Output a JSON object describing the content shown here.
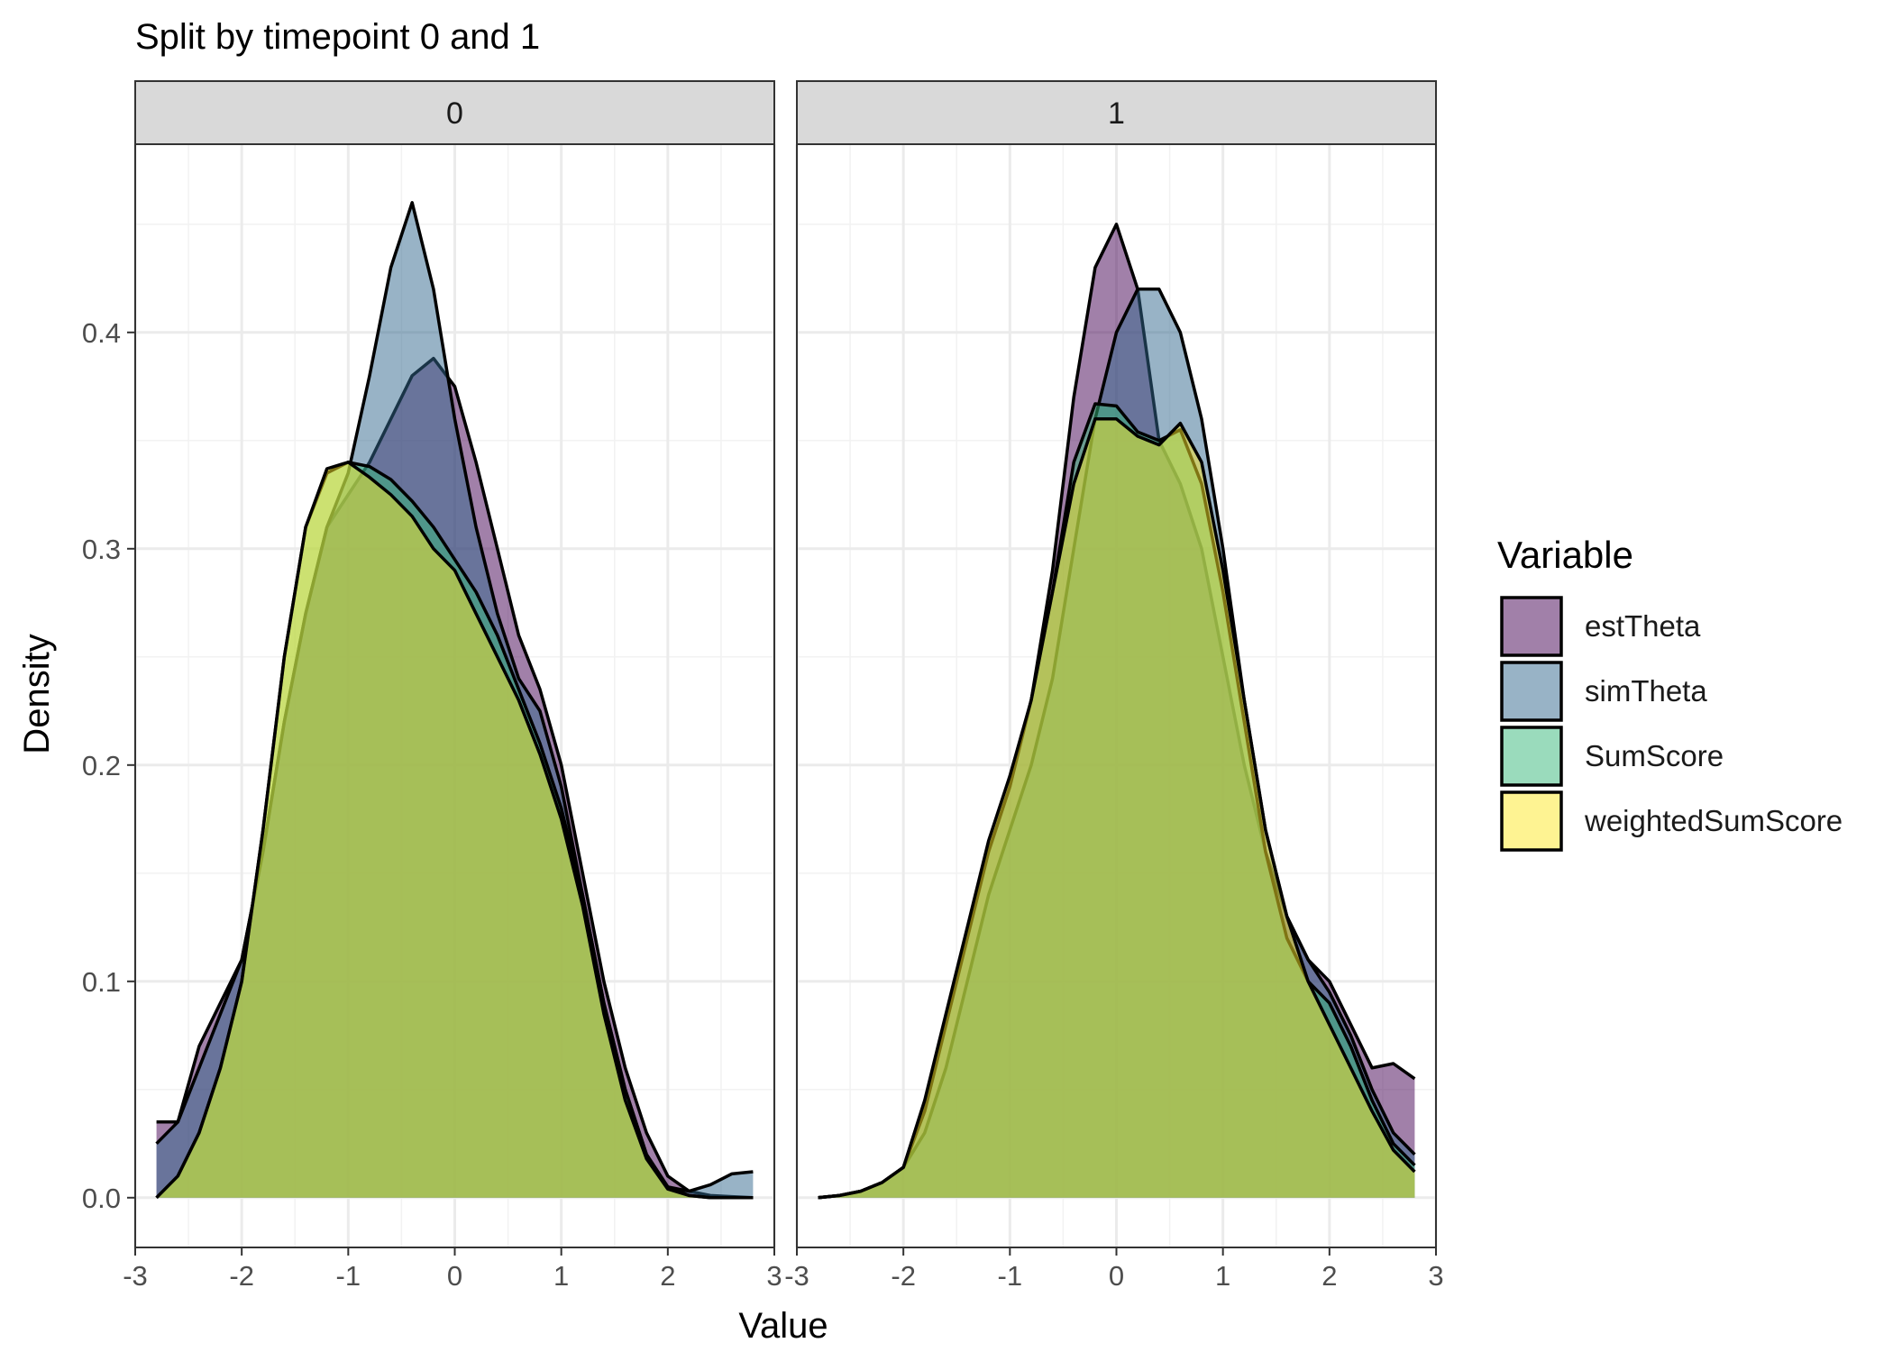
{
  "chart_data": {
    "type": "area",
    "title": "Split by timepoint 0 and 1",
    "xlabel": "Value",
    "ylabel": "Density",
    "xlim": [
      -3.0,
      3.0
    ],
    "ylim": [
      -0.023,
      0.487
    ],
    "x_ticks": [
      -3,
      -2,
      -1,
      0,
      1,
      2,
      3
    ],
    "y_ticks": [
      0.0,
      0.1,
      0.2,
      0.3,
      0.4
    ],
    "x_tick_labels": [
      "-3",
      "-2",
      "-1",
      "0",
      "1",
      "2",
      "3"
    ],
    "y_tick_labels": [
      "0.0",
      "0.1",
      "0.2",
      "0.3",
      "0.4"
    ],
    "grid": true,
    "legend": {
      "title": "Variable",
      "position": "right",
      "entries": [
        "estTheta",
        "simTheta",
        "SumScore",
        "weightedSumScore"
      ]
    },
    "colors": {
      "estTheta": "#440154",
      "simTheta": "#31688E",
      "SumScore": "#35B779",
      "weightedSumScore": "#FDE725"
    },
    "fill_opacity": 0.5,
    "panels": [
      {
        "label": "0",
        "series": [
          {
            "name": "estTheta",
            "x": [
              -2.8,
              -2.6,
              -2.4,
              -2.2,
              -2.0,
              -1.8,
              -1.6,
              -1.4,
              -1.2,
              -1.0,
              -0.8,
              -0.6,
              -0.4,
              -0.2,
              0.0,
              0.2,
              0.4,
              0.6,
              0.8,
              1.0,
              1.2,
              1.4,
              1.6,
              1.8,
              2.0,
              2.2,
              2.4,
              2.6,
              2.8
            ],
            "y": [
              0.035,
              0.035,
              0.07,
              0.09,
              0.11,
              0.16,
              0.22,
              0.27,
              0.31,
              0.325,
              0.34,
              0.36,
              0.38,
              0.388,
              0.375,
              0.34,
              0.3,
              0.26,
              0.235,
              0.2,
              0.15,
              0.1,
              0.06,
              0.03,
              0.01,
              0.003,
              0.001,
              0.0005,
              0.0
            ]
          },
          {
            "name": "simTheta",
            "x": [
              -2.8,
              -2.6,
              -2.4,
              -2.2,
              -2.0,
              -1.8,
              -1.6,
              -1.4,
              -1.2,
              -1.0,
              -0.8,
              -0.6,
              -0.4,
              -0.2,
              0.0,
              0.2,
              0.4,
              0.6,
              0.8,
              1.0,
              1.2,
              1.4,
              1.6,
              1.8,
              2.0,
              2.2,
              2.4,
              2.6,
              2.8
            ],
            "y": [
              0.025,
              0.035,
              0.06,
              0.085,
              0.11,
              0.16,
              0.22,
              0.27,
              0.31,
              0.335,
              0.38,
              0.43,
              0.46,
              0.42,
              0.36,
              0.31,
              0.27,
              0.24,
              0.225,
              0.19,
              0.14,
              0.09,
              0.05,
              0.02,
              0.005,
              0.003,
              0.006,
              0.011,
              0.012
            ]
          },
          {
            "name": "SumScore",
            "x": [
              -2.8,
              -2.6,
              -2.4,
              -2.2,
              -2.0,
              -1.8,
              -1.6,
              -1.4,
              -1.2,
              -1.0,
              -0.8,
              -0.6,
              -0.4,
              -0.2,
              0.0,
              0.2,
              0.4,
              0.6,
              0.8,
              1.0,
              1.2,
              1.4,
              1.6,
              1.8,
              2.0,
              2.2,
              2.4,
              2.6,
              2.8
            ],
            "y": [
              0.0,
              0.01,
              0.03,
              0.06,
              0.1,
              0.17,
              0.25,
              0.31,
              0.335,
              0.34,
              0.338,
              0.332,
              0.322,
              0.31,
              0.295,
              0.28,
              0.26,
              0.235,
              0.21,
              0.18,
              0.14,
              0.09,
              0.05,
              0.02,
              0.005,
              0.001,
              0.0,
              0.0,
              0.0
            ]
          },
          {
            "name": "weightedSumScore",
            "x": [
              -2.8,
              -2.6,
              -2.4,
              -2.2,
              -2.0,
              -1.8,
              -1.6,
              -1.4,
              -1.2,
              -1.0,
              -0.8,
              -0.6,
              -0.4,
              -0.2,
              0.0,
              0.2,
              0.4,
              0.6,
              0.8,
              1.0,
              1.2,
              1.4,
              1.6,
              1.8,
              2.0,
              2.2,
              2.4,
              2.6,
              2.8
            ],
            "y": [
              0.0,
              0.01,
              0.03,
              0.06,
              0.1,
              0.17,
              0.25,
              0.31,
              0.337,
              0.34,
              0.333,
              0.325,
              0.315,
              0.3,
              0.29,
              0.27,
              0.25,
              0.23,
              0.205,
              0.175,
              0.135,
              0.085,
              0.045,
              0.018,
              0.004,
              0.001,
              0.0,
              0.0,
              0.0
            ]
          }
        ]
      },
      {
        "label": "1",
        "series": [
          {
            "name": "estTheta",
            "x": [
              -2.8,
              -2.6,
              -2.4,
              -2.2,
              -2.0,
              -1.8,
              -1.6,
              -1.4,
              -1.2,
              -1.0,
              -0.8,
              -0.6,
              -0.4,
              -0.2,
              0.0,
              0.2,
              0.4,
              0.6,
              0.8,
              1.0,
              1.2,
              1.4,
              1.6,
              1.8,
              2.0,
              2.2,
              2.4,
              2.6,
              2.8
            ],
            "y": [
              0.0,
              0.001,
              0.003,
              0.007,
              0.014,
              0.04,
              0.08,
              0.12,
              0.16,
              0.19,
              0.23,
              0.29,
              0.37,
              0.43,
              0.45,
              0.42,
              0.35,
              0.33,
              0.3,
              0.25,
              0.2,
              0.16,
              0.13,
              0.11,
              0.1,
              0.08,
              0.06,
              0.062,
              0.055
            ]
          },
          {
            "name": "simTheta",
            "x": [
              -2.8,
              -2.6,
              -2.4,
              -2.2,
              -2.0,
              -1.8,
              -1.6,
              -1.4,
              -1.2,
              -1.0,
              -0.8,
              -0.6,
              -0.4,
              -0.2,
              0.0,
              0.2,
              0.4,
              0.6,
              0.8,
              1.0,
              1.2,
              1.4,
              1.6,
              1.8,
              2.0,
              2.2,
              2.4,
              2.6,
              2.8
            ],
            "y": [
              0.0,
              0.001,
              0.003,
              0.007,
              0.014,
              0.03,
              0.06,
              0.1,
              0.14,
              0.17,
              0.2,
              0.24,
              0.3,
              0.36,
              0.4,
              0.42,
              0.42,
              0.4,
              0.36,
              0.3,
              0.23,
              0.17,
              0.13,
              0.11,
              0.095,
              0.075,
              0.05,
              0.03,
              0.02
            ]
          },
          {
            "name": "SumScore",
            "x": [
              -2.8,
              -2.6,
              -2.4,
              -2.2,
              -2.0,
              -1.8,
              -1.6,
              -1.4,
              -1.2,
              -1.0,
              -0.8,
              -0.6,
              -0.4,
              -0.2,
              0.0,
              0.2,
              0.4,
              0.6,
              0.8,
              1.0,
              1.2,
              1.4,
              1.6,
              1.8,
              2.0,
              2.2,
              2.4,
              2.6,
              2.8
            ],
            "y": [
              0.0,
              0.001,
              0.003,
              0.007,
              0.014,
              0.04,
              0.08,
              0.12,
              0.16,
              0.19,
              0.23,
              0.28,
              0.34,
              0.367,
              0.366,
              0.354,
              0.35,
              0.355,
              0.33,
              0.28,
              0.22,
              0.16,
              0.12,
              0.1,
              0.09,
              0.07,
              0.045,
              0.025,
              0.015
            ]
          },
          {
            "name": "weightedSumScore",
            "x": [
              -2.8,
              -2.6,
              -2.4,
              -2.2,
              -2.0,
              -1.8,
              -1.6,
              -1.4,
              -1.2,
              -1.0,
              -0.8,
              -0.6,
              -0.4,
              -0.2,
              0.0,
              0.2,
              0.4,
              0.6,
              0.8,
              1.0,
              1.2,
              1.4,
              1.6,
              1.8,
              2.0,
              2.2,
              2.4,
              2.6,
              2.8
            ],
            "y": [
              0.0,
              0.001,
              0.003,
              0.007,
              0.014,
              0.045,
              0.085,
              0.125,
              0.165,
              0.195,
              0.23,
              0.28,
              0.33,
              0.36,
              0.36,
              0.352,
              0.348,
              0.358,
              0.34,
              0.29,
              0.23,
              0.17,
              0.13,
              0.1,
              0.08,
              0.06,
              0.04,
              0.022,
              0.012
            ]
          }
        ]
      }
    ]
  }
}
